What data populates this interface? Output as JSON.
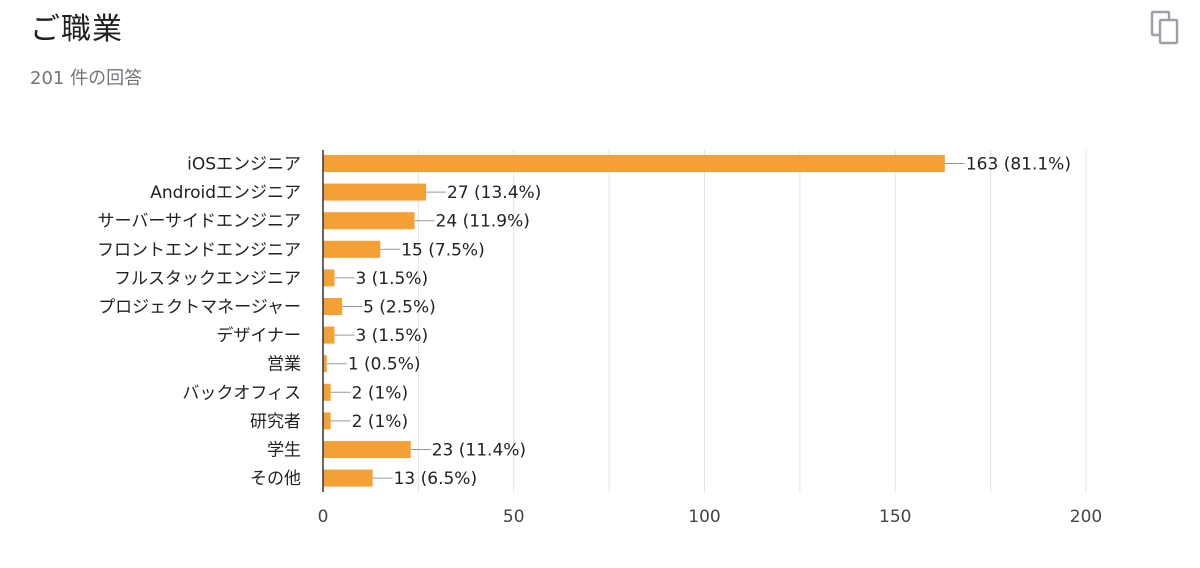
{
  "header": {
    "title": "ご職業",
    "subtitle": "201 件の回答",
    "copy_icon": "copy-icon"
  },
  "colors": {
    "bar": "#f4a035",
    "grid": "#e3e3e3",
    "axis": "#333333",
    "leader": "#999999"
  },
  "chart_data": {
    "type": "bar",
    "orientation": "horizontal",
    "title": "ご職業",
    "subtitle": "201 件の回答",
    "xlabel": "",
    "ylabel": "",
    "xlim": [
      0,
      200
    ],
    "xticks": [
      0,
      50,
      100,
      150,
      200
    ],
    "grid": true,
    "legend": "none",
    "categories": [
      "iOSエンジニア",
      "Androidエンジニア",
      "サーバーサイドエンジニア",
      "フロントエンドエンジニア",
      "フルスタックエンジニア",
      "プロジェクトマネージャー",
      "デザイナー",
      "営業",
      "バックオフィス",
      "研究者",
      "学生",
      "その他"
    ],
    "values": [
      163,
      27,
      24,
      15,
      3,
      5,
      3,
      1,
      2,
      2,
      23,
      13
    ],
    "data_labels": [
      "163 (81.1%)",
      "27 (13.4%)",
      "24 (11.9%)",
      "15 (7.5%)",
      "3 (1.5%)",
      "5 (2.5%)",
      "3 (1.5%)",
      "1 (0.5%)",
      "2 (1%)",
      "2 (1%)",
      "23 (11.4%)",
      "13 (6.5%)"
    ]
  }
}
